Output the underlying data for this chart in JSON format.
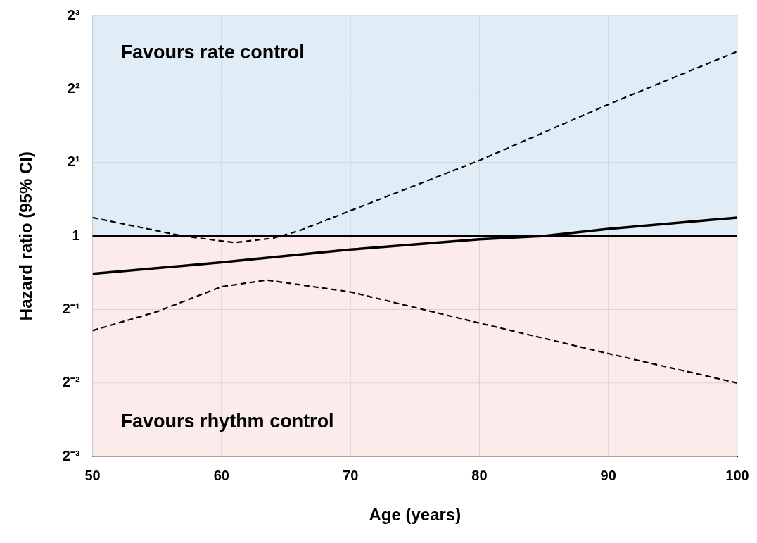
{
  "chart_data": {
    "type": "line",
    "xlabel": "Age (years)",
    "ylabel": "Hazard ratio (95% CI)",
    "x": [
      50,
      60,
      70,
      80,
      85,
      90,
      100
    ],
    "series": [
      {
        "color": "#000000",
        "line_style": "solid",
        "values": [
          0.7,
          0.78,
          0.88,
          0.97,
          1.0,
          1.07,
          1.19
        ]
      },
      {
        "color": "#000000",
        "line_style": "dashed",
        "x": [
          50,
          57,
          61,
          64,
          66,
          70,
          80,
          90,
          100
        ],
        "values": [
          1.19,
          1.0,
          0.94,
          0.98,
          1.05,
          1.27,
          2.04,
          3.46,
          5.7
        ]
      },
      {
        "color": "#000000",
        "line_style": "dashed",
        "x": [
          50,
          55,
          60,
          63.5,
          70,
          80,
          90,
          100
        ],
        "values": [
          0.41,
          0.49,
          0.62,
          0.66,
          0.59,
          0.44,
          0.33,
          0.25
        ]
      }
    ],
    "log": "y",
    "xlim": [
      50,
      100
    ],
    "xticks": [
      50,
      60,
      70,
      80,
      90,
      100
    ],
    "ylim": [
      0.125,
      8
    ],
    "yticks": [
      {
        "value": 0.125,
        "label": "2⁻³"
      },
      {
        "value": 0.25,
        "label": "2⁻²"
      },
      {
        "value": 0.5,
        "label": "2⁻¹"
      },
      1,
      {
        "value": 2,
        "label": "2¹"
      },
      {
        "value": 4,
        "label": "2²"
      },
      {
        "value": 8,
        "label": "2³"
      }
    ],
    "bands": [
      {
        "axis": "y",
        "from": 1,
        "to": 8,
        "label": "Favours rate control",
        "color": "#e0edf7"
      },
      {
        "axis": "y",
        "from": 0.125,
        "to": 1,
        "label": "Favours rhythm control",
        "color": "#fcebeb"
      }
    ],
    "ref_lines": [
      {
        "axis": "y",
        "value": 1,
        "color": "#000000",
        "line_style": "solid"
      }
    ],
    "grid": true,
    "marker": "none",
    "legend": false
  }
}
